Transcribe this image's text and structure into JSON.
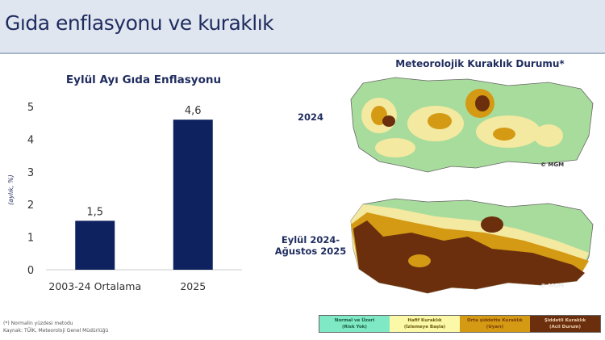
{
  "header": {
    "title": "Gıda enflasyonu ve kuraklık"
  },
  "chart_data": {
    "type": "bar",
    "title": "Eylül Ayı Gıda Enflasyonu",
    "ylabel": "(aylık, %)",
    "xlabel": "",
    "categories": [
      "2003-24 Ortalama",
      "2025"
    ],
    "values": [
      1.5,
      4.6
    ],
    "data_labels": [
      "1,5",
      "4,6"
    ],
    "ylim": [
      0,
      5
    ],
    "yticks": [
      "0",
      "1",
      "2",
      "3",
      "4",
      "5"
    ],
    "grid": false,
    "bar_color": "#0f2260"
  },
  "maps": {
    "title": "Meteorolojik Kuraklık Durumu*",
    "map1_label": "2024",
    "map2_label_line1": "Eylül 2024-",
    "map2_label_line2": "Ağustos 2025",
    "watermark": "© MGM"
  },
  "legend": [
    {
      "line1": "Normal ve Üzeri",
      "line2": "(Risk Yok)",
      "color": "#7fe8c4"
    },
    {
      "line1": "Hafif Kuraklık",
      "line2": "(İzlemeye Başla)",
      "color": "#fbf8a8"
    },
    {
      "line1": "Orta şiddette Kuraklık",
      "line2": "(Uyarı)",
      "color": "#d49a14"
    },
    {
      "line1": "Şiddetli Kuraklık",
      "line2": "(Acil Durum)",
      "color": "#6b2f0e"
    }
  ],
  "footer": {
    "note": "(*) Normalin yüzdesi metodu",
    "source": "Kaynak: TÜİK, Meteoroloji Genel Müdürlüğü"
  }
}
